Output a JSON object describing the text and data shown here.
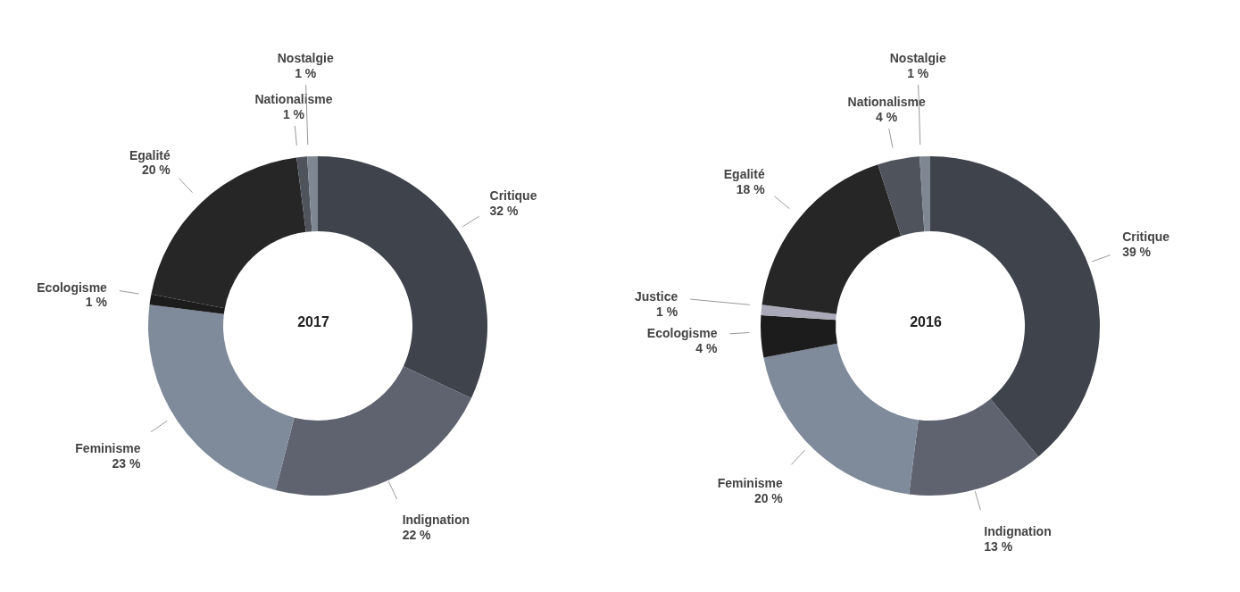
{
  "chart_data": [
    {
      "type": "donut",
      "title": "2017",
      "categories": [
        "Critique",
        "Indignation",
        "Feminisme",
        "Ecologisme",
        "Egalité",
        "Nationalisme",
        "Nostalgie"
      ],
      "values": [
        32,
        22,
        23,
        1,
        20,
        1,
        1
      ],
      "value_labels": [
        "32 %",
        "22 %",
        "23 %",
        "1 %",
        "20 %",
        "1 %",
        "1 %"
      ],
      "colors": [
        "#3f434c",
        "#5f6370",
        "#7f8a9a",
        "#1c1c1c",
        "#262626",
        "#4f535b",
        "#7e8792"
      ]
    },
    {
      "type": "donut",
      "title": "2016",
      "categories": [
        "Critique",
        "Indignation",
        "Feminisme",
        "Ecologisme",
        "Justice",
        "Egalité",
        "Nationalisme",
        "Nostalgie"
      ],
      "values": [
        39,
        13,
        20,
        4,
        1,
        18,
        4,
        1
      ],
      "value_labels": [
        "39 %",
        "13 %",
        "20 %",
        "4 %",
        "1 %",
        "18 %",
        "4 %",
        "1 %"
      ],
      "colors": [
        "#3f434c",
        "#5f6370",
        "#7f8a9a",
        "#1c1c1c",
        "#a9a9b8",
        "#262626",
        "#4f535b",
        "#7e8792"
      ]
    }
  ]
}
